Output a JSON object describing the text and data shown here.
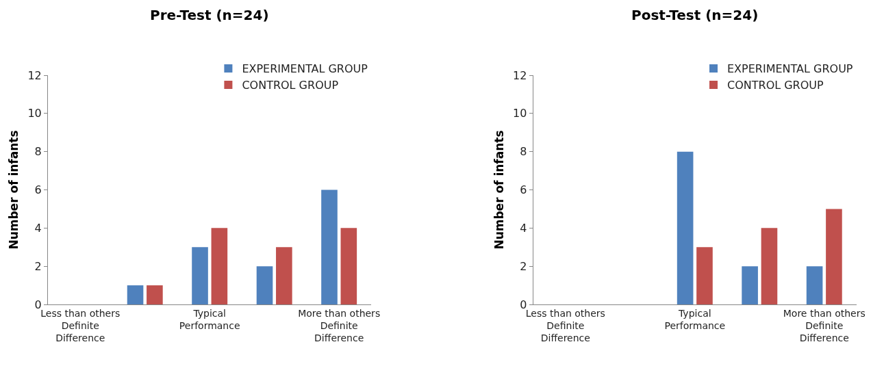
{
  "chart_data": [
    {
      "type": "bar",
      "title": "Pre-Test (n=24)",
      "ylabel": "Number of infants",
      "categories": [
        "Less than others Definite Difference",
        null,
        "Typical Performance",
        null,
        "More than others Definite Difference"
      ],
      "series": [
        {
          "name": "EXPERIMENTAL GROUP",
          "color": "#4f81bd",
          "values": [
            0,
            1,
            3,
            2,
            6
          ]
        },
        {
          "name": "CONTROL GROUP",
          "color": "#c0504d",
          "values": [
            0,
            1,
            4,
            3,
            4
          ]
        }
      ],
      "ylim": [
        0,
        12
      ],
      "yticks": [
        0,
        2,
        4,
        6,
        8,
        10,
        12
      ],
      "grid": false,
      "legend": "top right"
    },
    {
      "type": "bar",
      "title": "Post-Test (n=24)",
      "ylabel": "Number of infants",
      "categories": [
        "Less than others Definite Difference",
        null,
        "Typical Performance",
        null,
        "More than others Definite Difference"
      ],
      "series": [
        {
          "name": "EXPERIMENTAL GROUP",
          "color": "#4f81bd",
          "values": [
            0,
            0,
            8,
            2,
            2
          ]
        },
        {
          "name": "CONTROL GROUP",
          "color": "#c0504d",
          "values": [
            0,
            0,
            3,
            4,
            5
          ]
        }
      ],
      "ylim": [
        0,
        12
      ],
      "yticks": [
        0,
        2,
        4,
        6,
        8,
        10,
        12
      ],
      "grid": false,
      "legend": "top right"
    }
  ]
}
